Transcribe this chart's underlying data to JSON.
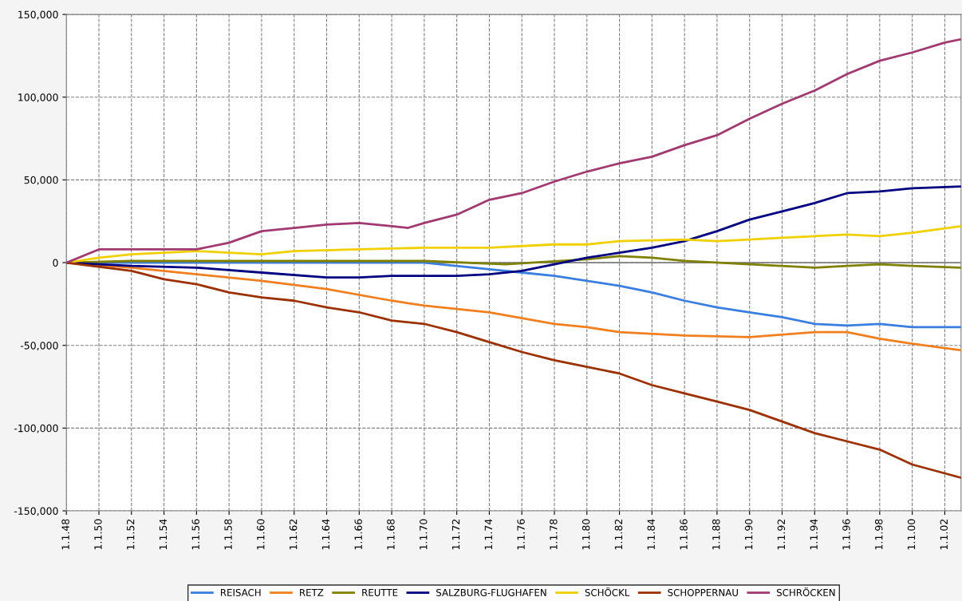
{
  "chart_data": {
    "type": "line",
    "xlim": [
      "1948",
      "2003"
    ],
    "xticks": [
      {
        "value": "1948",
        "label": "1.1.48"
      },
      {
        "value": "1950",
        "label": "1.1.50"
      },
      {
        "value": "1952",
        "label": "1.1.52"
      },
      {
        "value": "1954",
        "label": "1.1.54"
      },
      {
        "value": "1956",
        "label": "1.1.56"
      },
      {
        "value": "1958",
        "label": "1.1.58"
      },
      {
        "value": "1960",
        "label": "1.1.60"
      },
      {
        "value": "1962",
        "label": "1.1.62"
      },
      {
        "value": "1964",
        "label": "1.1.64"
      },
      {
        "value": "1966",
        "label": "1.1.66"
      },
      {
        "value": "1968",
        "label": "1.1.68"
      },
      {
        "value": "1970",
        "label": "1.1.70"
      },
      {
        "value": "1972",
        "label": "1.1.72"
      },
      {
        "value": "1974",
        "label": "1.1.74"
      },
      {
        "value": "1976",
        "label": "1.1.76"
      },
      {
        "value": "1978",
        "label": "1.1.78"
      },
      {
        "value": "1980",
        "label": "1.1.80"
      },
      {
        "value": "1982",
        "label": "1.1.82"
      },
      {
        "value": "1984",
        "label": "1.1.84"
      },
      {
        "value": "1986",
        "label": "1.1.86"
      },
      {
        "value": "1988",
        "label": "1.1.88"
      },
      {
        "value": "1990",
        "label": "1.1.90"
      },
      {
        "value": "1992",
        "label": "1.1.92"
      },
      {
        "value": "1994",
        "label": "1.1.94"
      },
      {
        "value": "1996",
        "label": "1.1.96"
      },
      {
        "value": "1998",
        "label": "1.1.98"
      },
      {
        "value": "2000",
        "label": "1.1.00"
      },
      {
        "value": "2002",
        "label": "1.1.02"
      }
    ],
    "ylim": [
      -150000,
      150000
    ],
    "yticks": [
      {
        "value": -150000,
        "label": "-150,000"
      },
      {
        "value": -100000,
        "label": "-100,000"
      },
      {
        "value": -50000,
        "label": "-50,000"
      },
      {
        "value": 0,
        "label": "0"
      },
      {
        "value": 50000,
        "label": "50,000"
      },
      {
        "value": 100000,
        "label": "100,000"
      },
      {
        "value": 150000,
        "label": "150,000"
      }
    ],
    "grid": true,
    "legend": "bottom",
    "ref_lines": [
      {
        "axis": "y",
        "value": 0,
        "color": "#808080"
      }
    ],
    "series": [
      {
        "name": "REISACH",
        "color": "#3a7ee0",
        "x": [
          "1948",
          "1960",
          "1970",
          "1974",
          "1976",
          "1978",
          "1980",
          "1982",
          "1984",
          "1986",
          "1988",
          "1990",
          "1992",
          "1994",
          "1996",
          "1998",
          "2000",
          "2003"
        ],
        "values": [
          0,
          0,
          0,
          -4000,
          -6000,
          -8000,
          -11000,
          -14000,
          -18000,
          -23000,
          -27000,
          -30000,
          -33000,
          -37000,
          -38000,
          -37000,
          -39000,
          -39000
        ]
      },
      {
        "name": "RETZ",
        "color": "#f07f20",
        "x": [
          "1948",
          "1952",
          "1956",
          "1960",
          "1964",
          "1968",
          "1970",
          "1974",
          "1978",
          "1980",
          "1982",
          "1986",
          "1990",
          "1994",
          "1996",
          "1998",
          "2000",
          "2003"
        ],
        "values": [
          0,
          -3000,
          -7000,
          -11000,
          -16000,
          -23000,
          -26000,
          -30000,
          -37000,
          -39000,
          -42000,
          -44000,
          -45000,
          -42000,
          -42000,
          -46000,
          -49000,
          -53000
        ]
      },
      {
        "name": "REUTTE",
        "color": "#808000",
        "x": [
          "1948",
          "1952",
          "1960",
          "1970",
          "1975",
          "1980",
          "1982",
          "1984",
          "1986",
          "1990",
          "1994",
          "1996",
          "1998",
          "2000",
          "2003"
        ],
        "values": [
          0,
          1000,
          1000,
          1000,
          -1000,
          2000,
          4000,
          3000,
          1000,
          -1000,
          -3000,
          -2000,
          -1000,
          -2000,
          -3000
        ]
      },
      {
        "name": "SALZBURG-FLUGHAFEN",
        "color": "#000080",
        "x": [
          "1948",
          "1952",
          "1956",
          "1960",
          "1964",
          "1966",
          "1968",
          "1970",
          "1972",
          "1974",
          "1976",
          "1978",
          "1980",
          "1982",
          "1984",
          "1986",
          "1988",
          "1990",
          "1992",
          "1994",
          "1996",
          "1998",
          "2000",
          "2003"
        ],
        "values": [
          0,
          -2000,
          -3000,
          -6000,
          -9000,
          -9000,
          -8000,
          -8000,
          -8000,
          -7000,
          -5000,
          -1000,
          3000,
          6000,
          9000,
          13000,
          19000,
          26000,
          31000,
          36000,
          42000,
          43000,
          45000,
          46000
        ]
      },
      {
        "name": "SCHÖCKL",
        "color": "#f0d000",
        "x": [
          "1948",
          "1950",
          "1952",
          "1956",
          "1958",
          "1960",
          "1962",
          "1966",
          "1970",
          "1974",
          "1978",
          "1980",
          "1982",
          "1986",
          "1988",
          "1990",
          "1992",
          "1996",
          "1998",
          "2000",
          "2003"
        ],
        "values": [
          0,
          3000,
          5000,
          7000,
          6000,
          5000,
          7000,
          8000,
          9000,
          9000,
          11000,
          11000,
          13000,
          14000,
          13000,
          14000,
          15000,
          17000,
          16000,
          18000,
          22000
        ]
      },
      {
        "name": "SCHOPPERNAU",
        "color": "#9b3000",
        "x": [
          "1948",
          "1952",
          "1954",
          "1956",
          "1958",
          "1960",
          "1962",
          "1964",
          "1966",
          "1968",
          "1970",
          "1972",
          "1974",
          "1976",
          "1978",
          "1980",
          "1982",
          "1984",
          "1986",
          "1988",
          "1990",
          "1992",
          "1994",
          "1996",
          "1998",
          "2000",
          "2003"
        ],
        "values": [
          0,
          -5000,
          -10000,
          -13000,
          -18000,
          -21000,
          -23000,
          -27000,
          -30000,
          -35000,
          -37000,
          -42000,
          -48000,
          -54000,
          -59000,
          -63000,
          -67000,
          -74000,
          -79000,
          -84000,
          -89000,
          -96000,
          -103000,
          -108000,
          -113000,
          -122000,
          -130000
        ]
      },
      {
        "name": "SCHRÖCKEN",
        "color": "#a03a70",
        "x": [
          "1948",
          "1950",
          "1952",
          "1956",
          "1958",
          "1960",
          "1962",
          "1964",
          "1966",
          "1968",
          "1969",
          "1970",
          "1972",
          "1974",
          "1976",
          "1978",
          "1980",
          "1982",
          "1984",
          "1986",
          "1988",
          "1990",
          "1992",
          "1994",
          "1996",
          "1998",
          "2000",
          "2002",
          "2003"
        ],
        "values": [
          0,
          8000,
          8000,
          8000,
          12000,
          19000,
          21000,
          23000,
          24000,
          22000,
          21000,
          24000,
          29000,
          38000,
          42000,
          49000,
          55000,
          60000,
          64000,
          71000,
          77000,
          87000,
          96000,
          104000,
          114000,
          122000,
          127000,
          133000,
          135000
        ]
      }
    ]
  }
}
